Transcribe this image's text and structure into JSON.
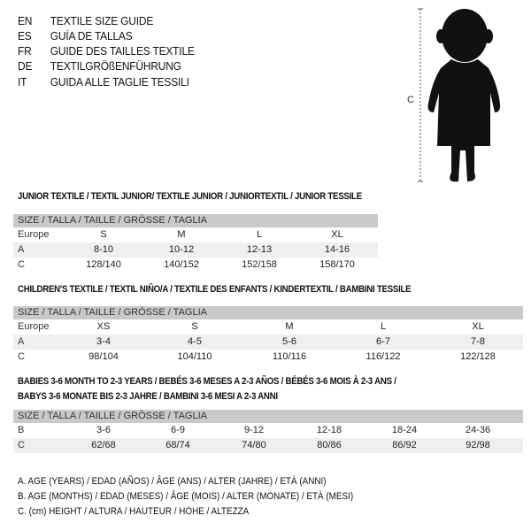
{
  "guide_titles": [
    {
      "code": "EN",
      "text": "TEXTILE SIZE GUIDE"
    },
    {
      "code": "ES",
      "text": "GUÍA DE TALLAS"
    },
    {
      "code": "FR",
      "text": "GUIDE DES TAILLES TEXTILE"
    },
    {
      "code": "DE",
      "text": "TEXTILGRÖßENFÜHRUNG"
    },
    {
      "code": "IT",
      "text": "GUIDA ALLE TAGLIE TESSILI"
    }
  ],
  "figure": {
    "measure_label": "C"
  },
  "size_header": "SIZE / TALLA / TAILLE / GRÖSSE / TAGLIA",
  "junior": {
    "title": "JUNIOR TEXTILE / TEXTIL JUNIOR/ TEXTILE JUNIOR / JUNIORTEXTIL / JUNIOR TESSILE",
    "rows": [
      {
        "label": "Europe",
        "values": [
          "S",
          "M",
          "L",
          "XL"
        ]
      },
      {
        "label": "A",
        "values": [
          "8-10",
          "10-12",
          "12-13",
          "14-16"
        ]
      },
      {
        "label": "C",
        "values": [
          "128/140",
          "140/152",
          "152/158",
          "158/170"
        ]
      }
    ]
  },
  "children": {
    "title": "CHILDREN'S TEXTILE / TEXTIL NIÑO/A / TEXTILE DES ENFANTS / KINDERTEXTIL / BAMBINI TESSILE",
    "rows": [
      {
        "label": "Europe",
        "values": [
          "XS",
          "S",
          "M",
          "L",
          "XL"
        ]
      },
      {
        "label": "A",
        "values": [
          "3-4",
          "4-5",
          "5-6",
          "6-7",
          "7-8"
        ]
      },
      {
        "label": "C",
        "values": [
          "98/104",
          "104/110",
          "110/116",
          "116/122",
          "122/128"
        ]
      }
    ]
  },
  "babies": {
    "title_line1": "BABIES 3-6 MONTH TO 2-3 YEARS / BEBÉS 3-6 MESES A 2-3 AÑOS / BÉBÉS 3-6 MOIS À 2-3 ANS /",
    "title_line2": "BABYS 3-6 MONATE BIS 2-3 JAHRE / BAMBINI 3-6 MESI A 2-3 ANNI",
    "rows": [
      {
        "label": "B",
        "values": [
          "3-6",
          "6-9",
          "9-12",
          "12-18",
          "18-24",
          "24-36"
        ]
      },
      {
        "label": "C",
        "values": [
          "62/68",
          "68/74",
          "74/80",
          "80/86",
          "86/92",
          "92/98"
        ]
      }
    ]
  },
  "legend": [
    "A. AGE (YEARS) / EDAD (AÑOS) / ÂGE (ANS) / ALTER (JAHRE) / ETÀ (ANNI)",
    "B. AGE (MONTHS) / EDAD (MESES) / ÂGE (MOIS) / ALTER (MONATE) / ETÀ (MESI)",
    "C. (cm) HEIGHT / ALTURA / HAUTEUR / HÖHE / ALTEZZA"
  ]
}
